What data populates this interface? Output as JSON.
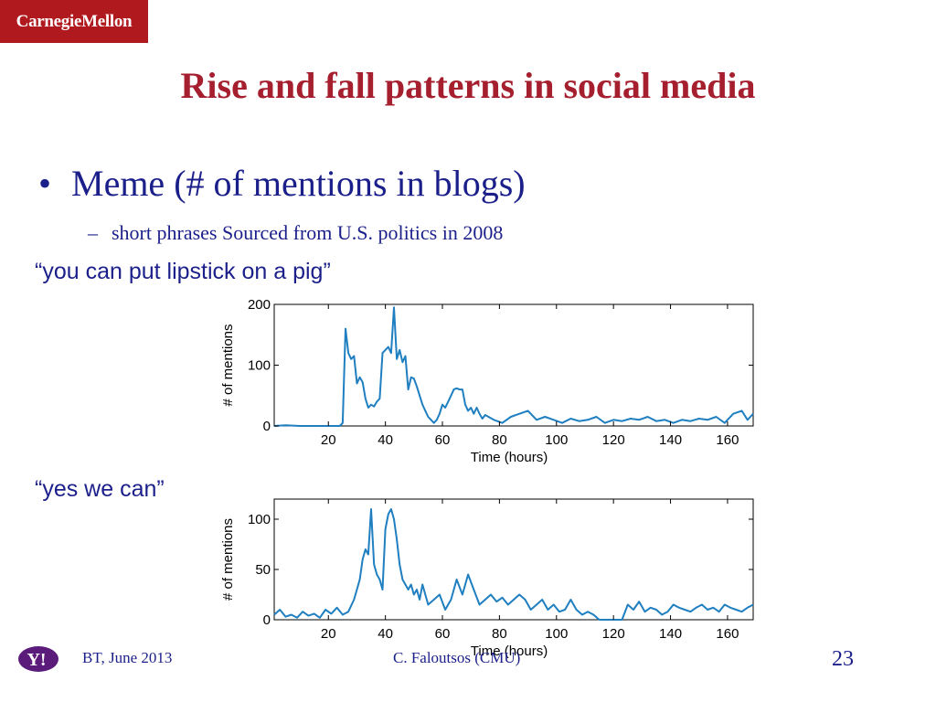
{
  "logo": {
    "text": "CarnegieMellon"
  },
  "slide": {
    "title": "Rise and fall patterns in social media",
    "bullet": "Meme (# of mentions in blogs)",
    "sub_bullet": "short phrases Sourced from U.S. politics in 2008",
    "quote1": "“you can put lipstick on a pig”",
    "quote2": "“yes we can”"
  },
  "footer": {
    "left": "BT, June 2013",
    "center": "C. Faloutsos (CMU)",
    "page_number": "23",
    "yahoo_mark": "Y!"
  },
  "colors": {
    "series": "#1f7fc0",
    "title": "#a51f2f",
    "text": "#1b1f8a",
    "logo_bg": "#b01a1f"
  },
  "chart_data": [
    {
      "type": "line",
      "xlabel": "Time (hours)",
      "ylabel": "# of mentions",
      "xlim": [
        1,
        169
      ],
      "ylim": [
        0,
        200
      ],
      "xticks": [
        20,
        40,
        60,
        80,
        100,
        120,
        140,
        160
      ],
      "yticks": [
        0,
        100,
        200
      ],
      "series": [
        {
          "x": [
            1,
            5,
            10,
            15,
            20,
            24,
            25,
            26,
            27,
            28,
            29,
            30,
            31,
            32,
            33,
            34,
            35,
            36,
            37,
            38,
            39,
            40,
            41,
            42,
            43,
            44,
            45,
            46,
            47,
            48,
            49,
            50,
            51,
            52,
            53,
            54,
            55,
            56,
            57,
            58,
            59,
            60,
            61,
            62,
            63,
            64,
            65,
            66,
            67,
            68,
            69,
            70,
            71,
            72,
            73,
            74,
            75,
            78,
            81,
            84,
            87,
            90,
            93,
            96,
            99,
            102,
            105,
            108,
            111,
            114,
            117,
            120,
            123,
            126,
            129,
            132,
            135,
            138,
            141,
            144,
            147,
            150,
            153,
            156,
            159,
            162,
            165,
            167,
            168,
            169
          ],
          "y": [
            0,
            1,
            0,
            0,
            0,
            0,
            5,
            160,
            120,
            110,
            115,
            70,
            80,
            72,
            45,
            30,
            35,
            32,
            40,
            45,
            120,
            125,
            130,
            120,
            195,
            110,
            125,
            105,
            115,
            60,
            80,
            78,
            65,
            50,
            35,
            25,
            15,
            10,
            5,
            10,
            20,
            35,
            30,
            40,
            50,
            60,
            62,
            60,
            60,
            35,
            25,
            30,
            20,
            30,
            20,
            12,
            18,
            10,
            5,
            15,
            20,
            25,
            10,
            15,
            10,
            5,
            12,
            8,
            10,
            15,
            5,
            10,
            8,
            12,
            10,
            15,
            8,
            10,
            5,
            10,
            8,
            12,
            10,
            15,
            5,
            20,
            25,
            10,
            15,
            20
          ]
        }
      ]
    },
    {
      "type": "line",
      "xlabel": "Time (hours)",
      "ylabel": "# of mentions",
      "xlim": [
        1,
        169
      ],
      "ylim": [
        0,
        120
      ],
      "xticks": [
        20,
        40,
        60,
        80,
        100,
        120,
        140,
        160
      ],
      "yticks": [
        0,
        50,
        100
      ],
      "series": [
        {
          "x": [
            1,
            3,
            5,
            7,
            9,
            11,
            13,
            15,
            17,
            19,
            21,
            23,
            25,
            27,
            29,
            31,
            32,
            33,
            34,
            35,
            36,
            37,
            38,
            39,
            40,
            41,
            42,
            43,
            44,
            45,
            46,
            47,
            48,
            49,
            50,
            51,
            52,
            53,
            55,
            57,
            59,
            61,
            63,
            65,
            67,
            69,
            71,
            73,
            75,
            77,
            79,
            81,
            83,
            85,
            87,
            89,
            91,
            93,
            95,
            97,
            99,
            101,
            103,
            105,
            107,
            109,
            111,
            113,
            115,
            117,
            119,
            121,
            123,
            125,
            127,
            129,
            131,
            133,
            135,
            137,
            139,
            141,
            143,
            145,
            147,
            149,
            151,
            153,
            155,
            157,
            159,
            161,
            163,
            165,
            167,
            169
          ],
          "y": [
            5,
            10,
            3,
            5,
            2,
            8,
            4,
            6,
            2,
            10,
            6,
            12,
            5,
            8,
            20,
            40,
            60,
            70,
            65,
            110,
            55,
            45,
            40,
            30,
            90,
            105,
            110,
            100,
            80,
            55,
            40,
            35,
            30,
            35,
            25,
            30,
            20,
            35,
            15,
            20,
            25,
            10,
            20,
            40,
            25,
            45,
            30,
            15,
            20,
            25,
            18,
            22,
            15,
            20,
            25,
            20,
            10,
            15,
            20,
            10,
            15,
            8,
            10,
            20,
            10,
            5,
            8,
            5,
            0,
            0,
            0,
            0,
            0,
            15,
            10,
            18,
            8,
            12,
            10,
            5,
            8,
            15,
            12,
            10,
            8,
            12,
            15,
            10,
            12,
            8,
            15,
            12,
            10,
            8,
            12,
            15
          ]
        }
      ]
    }
  ]
}
